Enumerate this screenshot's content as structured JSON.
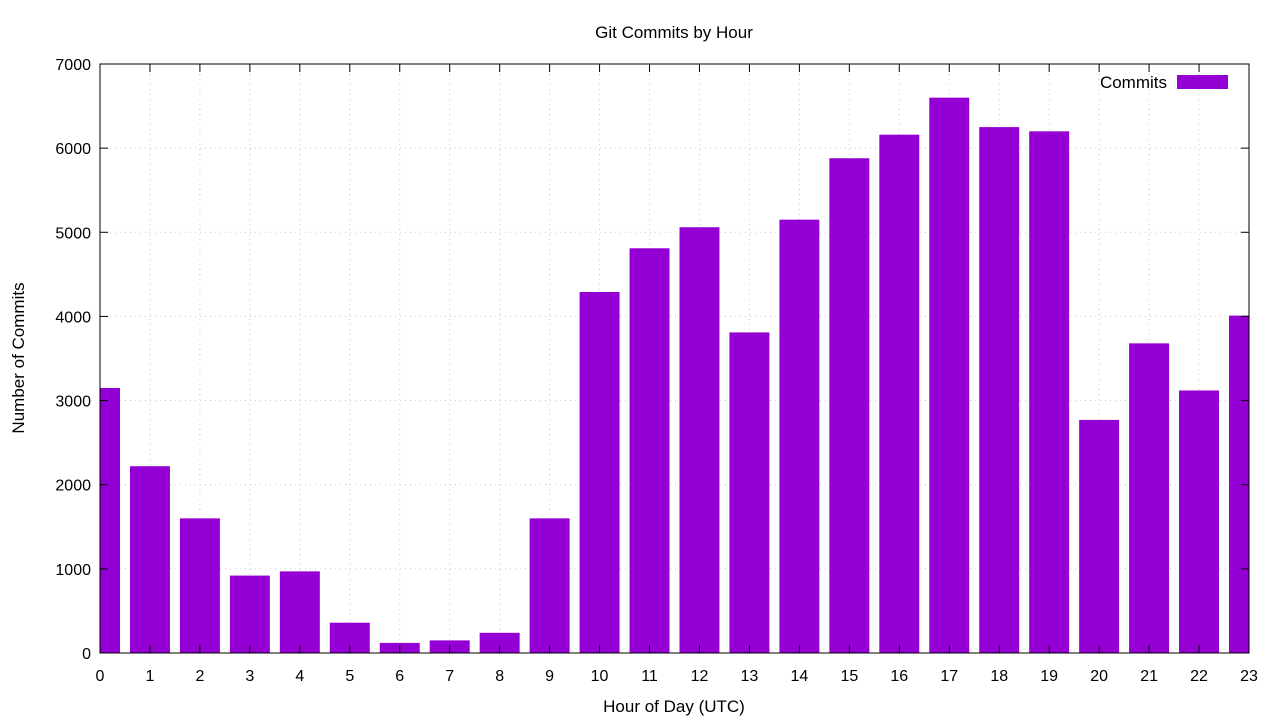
{
  "chart_data": {
    "type": "bar",
    "title": "Git Commits by Hour",
    "xlabel": "Hour of Day (UTC)",
    "ylabel": "Number of Commits",
    "categories": [
      "0",
      "1",
      "2",
      "3",
      "4",
      "5",
      "6",
      "7",
      "8",
      "9",
      "10",
      "11",
      "12",
      "13",
      "14",
      "15",
      "16",
      "17",
      "18",
      "19",
      "20",
      "21",
      "22",
      "23"
    ],
    "series": [
      {
        "name": "Commits",
        "color": "#9400d3",
        "values": [
          3150,
          2220,
          1600,
          920,
          970,
          360,
          120,
          150,
          240,
          1600,
          4290,
          4810,
          5060,
          3810,
          5150,
          5880,
          6160,
          6600,
          6250,
          6200,
          2770,
          3680,
          3120,
          4010
        ]
      }
    ],
    "ylim": [
      0,
      7000
    ],
    "yticks": [
      0,
      1000,
      2000,
      3000,
      4000,
      5000,
      6000,
      7000
    ],
    "grid": true,
    "legend_position": "top-right"
  }
}
